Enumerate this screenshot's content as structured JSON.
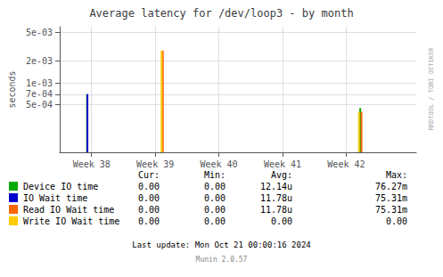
{
  "chart_data": {
    "type": "bar",
    "title": "Average latency for /dev/loop3 - by month",
    "ylabel": "seconds",
    "log": "y",
    "grid": true,
    "xlim": [
      37.5,
      43.1
    ],
    "xticks": [
      {
        "value": 38,
        "label": "Week 38"
      },
      {
        "value": 39,
        "label": "Week 39"
      },
      {
        "value": 40,
        "label": "Week 40"
      },
      {
        "value": 41,
        "label": "Week 41"
      },
      {
        "value": 42,
        "label": "Week 42"
      }
    ],
    "ylim": [
      0.00011,
      0.006
    ],
    "yticks": [
      {
        "value": 0.0005,
        "label": "5e-04"
      },
      {
        "value": 0.0007,
        "label": "7e-04"
      },
      {
        "value": 0.001,
        "label": "1e-03"
      },
      {
        "value": 0.002,
        "label": "2e-03"
      },
      {
        "value": 0.005,
        "label": "5e-03"
      }
    ],
    "stat_headers": [
      "Cur:",
      "Min:",
      "Avg:",
      "Max:"
    ],
    "series": [
      {
        "name": "Device IO time",
        "color": "#00aa00",
        "x": [
          37.93,
          42.22
        ],
        "bottoms": [
          0.00011,
          0.00011
        ],
        "values": [
          0.0007,
          0.00045
        ],
        "stats": [
          "0.00",
          "0.00",
          "12.14u",
          "76.27m"
        ]
      },
      {
        "name": "IO Wait time",
        "color": "#0000cc",
        "x": [
          37.935
        ],
        "bottoms": [
          0.00011
        ],
        "values": [
          0.0007
        ],
        "stats": [
          "0.00",
          "0.00",
          "11.78u",
          "75.31m"
        ]
      },
      {
        "name": "Read IO Wait time",
        "color": "#ff6600",
        "x": [
          39.12,
          42.24
        ],
        "bottoms": [
          0.00011,
          0.00011
        ],
        "values": [
          0.0028,
          0.0004
        ],
        "stats": [
          "0.00",
          "0.00",
          "11.78u",
          "75.31m"
        ]
      },
      {
        "name": "Write IO Wait time",
        "color": "#ffcc00",
        "x": [
          39.1,
          42.2
        ],
        "bottoms": [
          0.00011,
          0.00011
        ],
        "values": [
          0.0028,
          0.0004
        ],
        "stats": [
          "0.00",
          "0.00",
          "0.00",
          "0.00"
        ]
      }
    ],
    "annotations": [
      "Last update: Mon Oct 21 00:00:16 2024",
      "Munin 2.0.57",
      "RRDTOOL / TOBI OETIKER"
    ]
  }
}
